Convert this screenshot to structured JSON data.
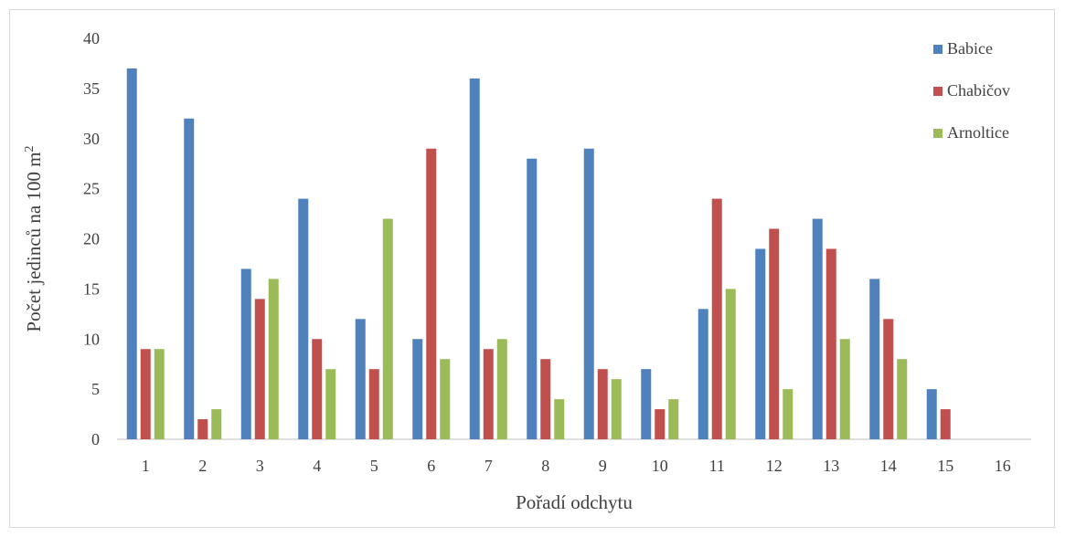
{
  "chart_data": {
    "type": "bar",
    "title": "",
    "xlabel": "Pořadí odchytu",
    "ylabel": "Počet jedinců na 100 m",
    "ylabel_superscript": "2",
    "categories": [
      "1",
      "2",
      "3",
      "4",
      "5",
      "6",
      "7",
      "8",
      "9",
      "10",
      "11",
      "12",
      "13",
      "14",
      "15",
      "16"
    ],
    "ylim": [
      0,
      40
    ],
    "yticks": [
      0,
      5,
      10,
      15,
      20,
      25,
      30,
      35,
      40
    ],
    "grid": false,
    "legend_position": "top-right",
    "series": [
      {
        "name": "Babice",
        "color": "#4f81bd",
        "values": [
          37,
          32,
          17,
          24,
          12,
          10,
          36,
          28,
          29,
          7,
          13,
          19,
          22,
          16,
          5,
          null
        ]
      },
      {
        "name": "Chabičov",
        "color": "#c0504d",
        "values": [
          9,
          2,
          14,
          10,
          7,
          29,
          9,
          8,
          7,
          3,
          24,
          21,
          19,
          12,
          3,
          null
        ]
      },
      {
        "name": "Arnoltice",
        "color": "#9bbb59",
        "values": [
          9,
          3,
          16,
          7,
          22,
          8,
          10,
          4,
          6,
          4,
          15,
          5,
          10,
          8,
          null,
          null
        ]
      }
    ]
  }
}
